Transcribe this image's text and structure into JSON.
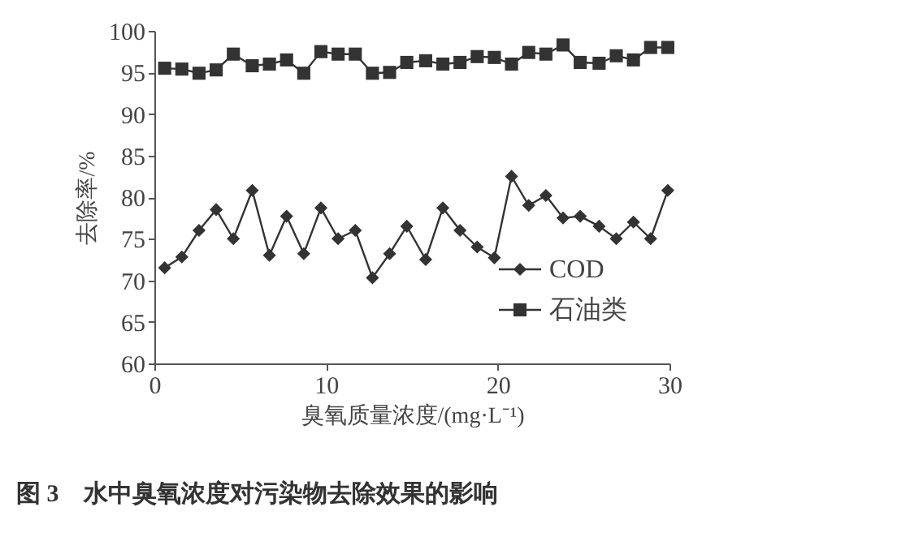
{
  "chart_data": {
    "type": "line",
    "xlabel": "臭氧质量浓度/(mg·L⁻¹)",
    "ylabel": "去除率/%",
    "x": [
      0.6,
      1.6,
      2.6,
      3.6,
      4.6,
      5.7,
      6.7,
      7.7,
      8.7,
      9.7,
      10.7,
      11.7,
      12.7,
      13.7,
      14.7,
      15.8,
      16.8,
      17.8,
      18.8,
      19.8,
      20.8,
      21.8,
      22.8,
      23.8,
      24.8,
      25.9,
      26.9,
      27.9,
      28.9,
      29.9
    ],
    "series": [
      {
        "name": "COD",
        "color": "#333333",
        "marker": "diamond",
        "values": [
          71.5,
          72.8,
          76,
          78.5,
          75,
          80.8,
          73,
          77.7,
          73.2,
          78.7,
          75,
          76,
          70.3,
          73.2,
          76.5,
          72.5,
          78.7,
          76,
          74,
          72.7,
          82.5,
          79,
          80.2,
          77.5,
          77.7,
          76.5,
          75,
          77,
          75,
          80.8
        ]
      },
      {
        "name": "石油类",
        "color": "#333333",
        "marker": "square",
        "values": [
          95.5,
          95.4,
          94.9,
          95.3,
          97.2,
          95.8,
          96,
          96.5,
          94.9,
          97.5,
          97.2,
          97.2,
          94.9,
          95,
          96.2,
          96.4,
          96,
          96.2,
          96.9,
          96.8,
          96,
          97.4,
          97.2,
          98.3,
          96.2,
          96.1,
          97,
          96.5,
          98,
          98
        ]
      }
    ],
    "xlim": [
      0,
      30
    ],
    "xticks": [
      0,
      10,
      20,
      30
    ],
    "ylim": [
      60,
      100
    ],
    "yticks": [
      60,
      65,
      70,
      75,
      80,
      85,
      90,
      95,
      100
    ],
    "grid": false,
    "legend": "bottom right",
    "line_style": "solid",
    "annotations": [
      "图 3　水中臭氧浓度对污染物去除效果的影响"
    ]
  }
}
